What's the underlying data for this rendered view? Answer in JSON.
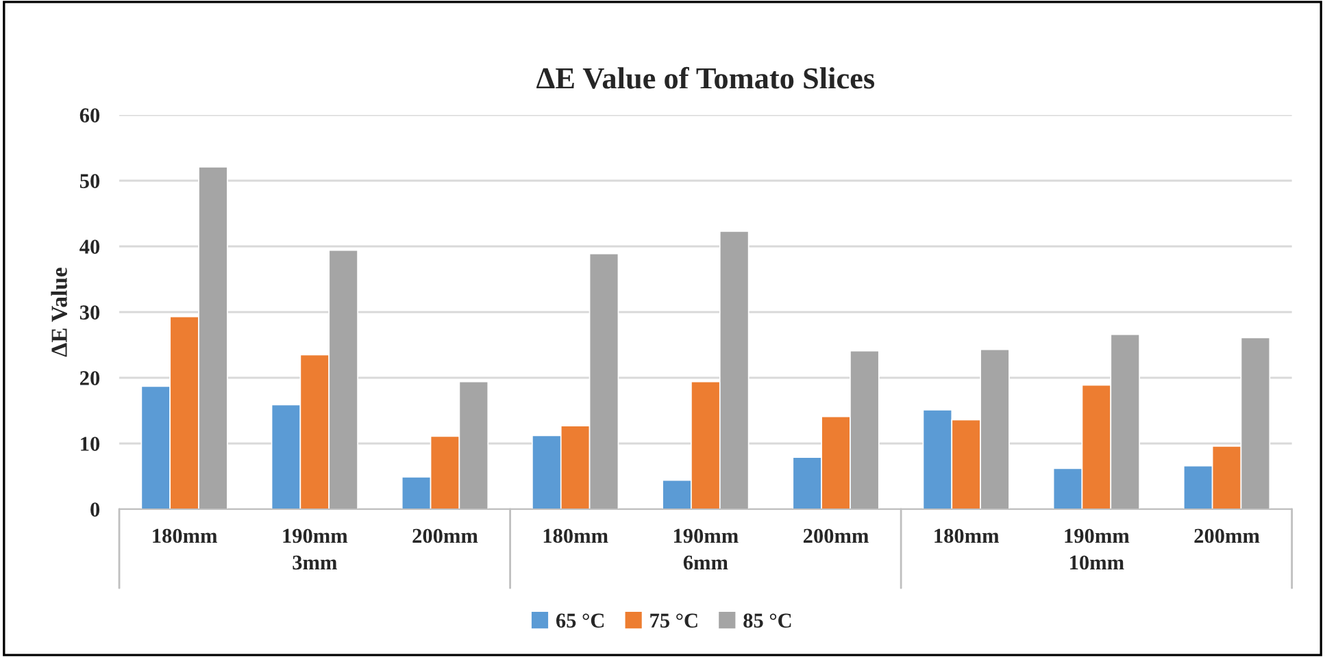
{
  "chart_data": {
    "type": "bar",
    "title": "ΔE Value of Tomato Slices",
    "ylabel": "ΔE Value",
    "categories": [
      "180mm",
      "190mm",
      "200mm",
      "180mm",
      "190mm",
      "200mm",
      "180mm",
      "190mm",
      "200mm"
    ],
    "annotations": [
      "3mm",
      "6mm",
      "10mm"
    ],
    "series": [
      {
        "name": "65 °C",
        "color": "#5b9bd5",
        "values": [
          18.7,
          15.9,
          4.9,
          11.2,
          4.4,
          7.9,
          15.1,
          6.2,
          6.6
        ]
      },
      {
        "name": "75 °C",
        "color": "#ed7d31",
        "values": [
          29.3,
          23.5,
          11.1,
          12.7,
          19.4,
          14.1,
          13.6,
          18.9,
          9.6
        ]
      },
      {
        "name": "85 °C",
        "color": "#a5a5a5",
        "values": [
          52.1,
          39.4,
          19.4,
          38.9,
          42.3,
          24.1,
          24.3,
          26.6,
          26.1
        ]
      }
    ],
    "ylim": [
      0,
      60
    ],
    "yticks": [
      0,
      10,
      20,
      30,
      40,
      50,
      60
    ],
    "grid": "y",
    "legend": "bottom"
  }
}
